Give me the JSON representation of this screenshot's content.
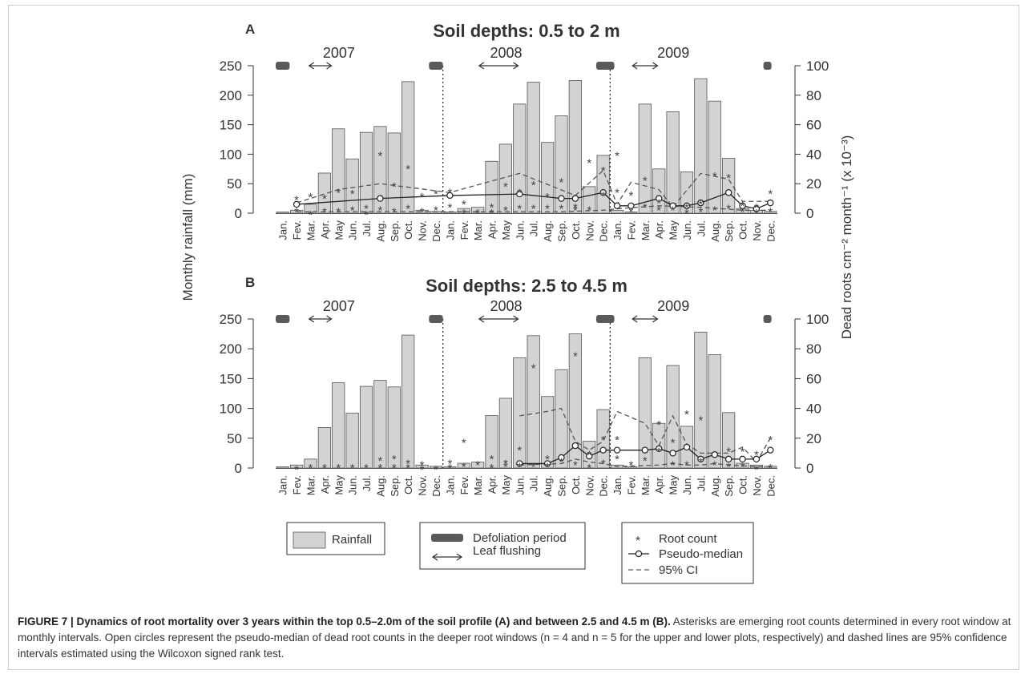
{
  "figure": {
    "caption_lead": "FIGURE 7 | Dynamics of root mortality over 3 years within the top 0.5–2.0m of the soil profile (A) and between 2.5 and 4.5 m (B).",
    "caption_rest": " Asterisks are emerging root counts determined in every root window at monthly intervals. Open circles represent the pseudo-median of dead root counts in the deeper root windows (n = 4 and n = 5 for the upper and lower plots, respectively) and dashed lines are 95% confidence intervals estimated using the Wilcoxon signed rank test."
  },
  "colors": {
    "bar_fill": "#d3d3d3",
    "bar_stroke": "#555555",
    "defoliation": "#5a5a5a",
    "line": "#222222",
    "asterisk": "#444444"
  },
  "legend": {
    "rainfall": "Rainfall",
    "defoliation": "Defoliation period",
    "leaf_flushing": "Leaf flushing",
    "root_count": "Root count",
    "pseudo_median": "Pseudo-median",
    "ci": "95% CI",
    "asterisk_symbol": "*"
  },
  "chart_data": [
    {
      "panel": "A",
      "title": "Soil depths: 0.5 to 2 m",
      "type": "bar",
      "ylabel": "Monthly rainfall (mm)",
      "y2label": "Dead roots cm⁻² month⁻¹ (x 10⁻³)",
      "ylim": [
        0,
        250
      ],
      "y2lim": [
        0,
        100
      ],
      "yticks": [
        "0",
        "50",
        "100",
        "150",
        "200",
        "250"
      ],
      "y2ticks": [
        "0",
        "20",
        "40",
        "60",
        "80",
        "100"
      ],
      "years": [
        "2007",
        "2008",
        "2009"
      ],
      "categories": [
        "Jan.",
        "Fev.",
        "Mar.",
        "Apr.",
        "May",
        "Jun.",
        "Jul.",
        "Aug.",
        "Sep.",
        "Oct.",
        "Nov.",
        "Dec.",
        "Jan.",
        "Fev.",
        "Mar.",
        "Apr.",
        "May",
        "Jun.",
        "Jul.",
        "Aug.",
        "Sep.",
        "Oct.",
        "Nov.",
        "Dec.",
        "Jan.",
        "Fev.",
        "Mar.",
        "Apr.",
        "May",
        "Jun.",
        "Jul.",
        "Aug.",
        "Sep.",
        "Oct.",
        "Nov.",
        "Dec."
      ],
      "rainfall": [
        2,
        5,
        15,
        68,
        143,
        92,
        137,
        147,
        136,
        223,
        5,
        3,
        2,
        8,
        10,
        88,
        117,
        185,
        222,
        120,
        165,
        225,
        45,
        98,
        5,
        2,
        185,
        75,
        172,
        70,
        228,
        190,
        93,
        8,
        5,
        3
      ],
      "pseudo_median": [
        [
          1,
          6
        ],
        [
          7,
          10
        ],
        [
          12,
          12
        ],
        [
          17,
          13
        ],
        [
          20,
          10
        ],
        [
          21,
          10
        ],
        [
          23,
          14
        ],
        [
          24,
          5
        ],
        [
          25,
          5
        ],
        [
          27,
          10
        ],
        [
          28,
          5
        ],
        [
          29,
          5
        ],
        [
          30,
          7
        ],
        [
          32,
          14
        ],
        [
          33,
          5
        ],
        [
          34,
          3
        ],
        [
          35,
          7
        ]
      ],
      "ci_upper": [
        [
          1,
          7
        ],
        [
          4,
          16
        ],
        [
          7,
          20
        ],
        [
          12,
          14
        ],
        [
          17,
          27
        ],
        [
          21,
          12
        ],
        [
          23,
          29
        ],
        [
          24,
          6
        ],
        [
          25,
          21
        ],
        [
          27,
          16
        ],
        [
          28,
          4
        ],
        [
          30,
          27
        ],
        [
          32,
          23
        ],
        [
          33,
          8
        ],
        [
          35,
          8
        ]
      ],
      "ci_lower": [
        [
          1,
          1
        ],
        [
          12,
          1
        ],
        [
          20,
          1
        ],
        [
          23,
          2
        ],
        [
          24,
          3
        ],
        [
          27,
          5
        ],
        [
          30,
          4
        ],
        [
          33,
          2
        ],
        [
          35,
          2
        ]
      ],
      "root_counts": [
        [
          1,
          10
        ],
        [
          1,
          2
        ],
        [
          2,
          12
        ],
        [
          2,
          0
        ],
        [
          3,
          11
        ],
        [
          3,
          2
        ],
        [
          4,
          15
        ],
        [
          4,
          2
        ],
        [
          5,
          14
        ],
        [
          5,
          3
        ],
        [
          6,
          4
        ],
        [
          6,
          0
        ],
        [
          7,
          40
        ],
        [
          7,
          3
        ],
        [
          8,
          19
        ],
        [
          8,
          2
        ],
        [
          9,
          31
        ],
        [
          9,
          4
        ],
        [
          10,
          12
        ],
        [
          10,
          2
        ],
        [
          11,
          14
        ],
        [
          11,
          3
        ],
        [
          12,
          15
        ],
        [
          12,
          5
        ],
        [
          13,
          7
        ],
        [
          13,
          1
        ],
        [
          14,
          1
        ],
        [
          15,
          5
        ],
        [
          15,
          1
        ],
        [
          16,
          19
        ],
        [
          16,
          3
        ],
        [
          17,
          15
        ],
        [
          17,
          4
        ],
        [
          18,
          20
        ],
        [
          18,
          4
        ],
        [
          19,
          12
        ],
        [
          19,
          4
        ],
        [
          20,
          22
        ],
        [
          20,
          4
        ],
        [
          21,
          5
        ],
        [
          21,
          3
        ],
        [
          22,
          35
        ],
        [
          22,
          3
        ],
        [
          23,
          30
        ],
        [
          23,
          13
        ],
        [
          24,
          40
        ],
        [
          24,
          15
        ],
        [
          25,
          13
        ],
        [
          25,
          2
        ],
        [
          26,
          23
        ],
        [
          26,
          5
        ],
        [
          27,
          8
        ],
        [
          27,
          3
        ],
        [
          28,
          3
        ],
        [
          29,
          5
        ],
        [
          29,
          1
        ],
        [
          30,
          7
        ],
        [
          30,
          2
        ],
        [
          31,
          26
        ],
        [
          31,
          3
        ],
        [
          32,
          25
        ],
        [
          32,
          4
        ],
        [
          33,
          6
        ],
        [
          33,
          2
        ],
        [
          34,
          5
        ],
        [
          34,
          1
        ],
        [
          35,
          14
        ],
        [
          35,
          2
        ]
      ],
      "defoliation_months": [
        [
          0,
          1
        ],
        [
          11,
          12
        ],
        [
          23,
          24.3
        ],
        [
          35,
          35.5
        ]
      ],
      "leaf_flushing_months": [
        [
          2.4,
          4
        ],
        [
          14.6,
          17.4
        ],
        [
          25.6,
          27.4
        ]
      ],
      "dotted_lines_at": [
        11.5,
        23.5
      ]
    },
    {
      "panel": "B",
      "title": "Soil depths: 2.5 to 4.5 m",
      "type": "bar",
      "ylabel": "Monthly rainfall (mm)",
      "y2label": "Dead roots cm⁻² month⁻¹ (x 10⁻³)",
      "ylim": [
        0,
        250
      ],
      "y2lim": [
        0,
        100
      ],
      "yticks": [
        "0",
        "50",
        "100",
        "150",
        "200",
        "250"
      ],
      "y2ticks": [
        "0",
        "20",
        "40",
        "60",
        "80",
        "100"
      ],
      "years": [
        "2007",
        "2008",
        "2009"
      ],
      "categories": [
        "Jan.",
        "Fev.",
        "Mar.",
        "Apr.",
        "May",
        "Jun.",
        "Jul.",
        "Aug.",
        "Sep.",
        "Oct.",
        "Nov.",
        "Dec.",
        "Jan.",
        "Fev.",
        "Mar.",
        "Apr.",
        "May",
        "Jun.",
        "Jul.",
        "Aug.",
        "Sep.",
        "Oct.",
        "Nov.",
        "Dec.",
        "Jan.",
        "Fev.",
        "Mar.",
        "Apr.",
        "May",
        "Jun.",
        "Jul.",
        "Aug.",
        "Sep.",
        "Oct.",
        "Nov.",
        "Dec."
      ],
      "rainfall": [
        2,
        5,
        15,
        68,
        143,
        92,
        137,
        147,
        136,
        223,
        5,
        3,
        2,
        8,
        10,
        88,
        117,
        185,
        222,
        120,
        165,
        225,
        45,
        98,
        5,
        2,
        185,
        75,
        172,
        70,
        228,
        190,
        93,
        8,
        5,
        3
      ],
      "pseudo_median": [
        [
          17,
          3
        ],
        [
          19,
          3
        ],
        [
          20,
          7
        ],
        [
          21,
          15
        ],
        [
          22,
          8
        ],
        [
          23,
          12
        ],
        [
          24,
          12
        ],
        [
          26,
          12
        ],
        [
          27,
          13
        ],
        [
          28,
          10
        ],
        [
          29,
          14
        ],
        [
          30,
          6
        ],
        [
          31,
          9
        ],
        [
          32,
          6
        ],
        [
          33,
          6
        ],
        [
          34,
          6
        ],
        [
          35,
          12
        ]
      ],
      "ci_upper": [
        [
          17,
          35
        ],
        [
          19,
          38
        ],
        [
          20,
          40
        ],
        [
          21,
          18
        ],
        [
          22,
          12
        ],
        [
          23,
          18
        ],
        [
          24,
          38
        ],
        [
          26,
          30
        ],
        [
          27,
          15
        ],
        [
          28,
          35
        ],
        [
          29,
          16
        ],
        [
          30,
          10
        ],
        [
          32,
          10
        ],
        [
          33,
          14
        ],
        [
          34,
          4
        ],
        [
          35,
          20
        ]
      ],
      "ci_lower": [
        [
          17,
          2
        ],
        [
          20,
          3
        ],
        [
          21,
          6
        ],
        [
          22,
          4
        ],
        [
          23,
          3
        ],
        [
          24,
          1
        ],
        [
          27,
          2
        ],
        [
          28,
          3
        ],
        [
          29,
          2
        ],
        [
          30,
          2
        ],
        [
          31,
          3
        ],
        [
          32,
          2
        ],
        [
          34,
          1
        ],
        [
          35,
          1
        ]
      ],
      "root_counts": [
        [
          1,
          0
        ],
        [
          2,
          1
        ],
        [
          3,
          1
        ],
        [
          4,
          1
        ],
        [
          5,
          1
        ],
        [
          6,
          1
        ],
        [
          7,
          6
        ],
        [
          7,
          1
        ],
        [
          8,
          7
        ],
        [
          8,
          1
        ],
        [
          9,
          4
        ],
        [
          9,
          1
        ],
        [
          10,
          3
        ],
        [
          10,
          0
        ],
        [
          11,
          0
        ],
        [
          12,
          4
        ],
        [
          12,
          1
        ],
        [
          13,
          18
        ],
        [
          13,
          2
        ],
        [
          14,
          3
        ],
        [
          15,
          7
        ],
        [
          15,
          1
        ],
        [
          16,
          4
        ],
        [
          16,
          2
        ],
        [
          17,
          13
        ],
        [
          17,
          2
        ],
        [
          18,
          68
        ],
        [
          18,
          2
        ],
        [
          19,
          7
        ],
        [
          19,
          2
        ],
        [
          20,
          5
        ],
        [
          21,
          76
        ],
        [
          21,
          3
        ],
        [
          22,
          10
        ],
        [
          22,
          1
        ],
        [
          23,
          20
        ],
        [
          23,
          4
        ],
        [
          24,
          20
        ],
        [
          24,
          7
        ],
        [
          25,
          3
        ],
        [
          26,
          6
        ],
        [
          27,
          30
        ],
        [
          27,
          12
        ],
        [
          28,
          18
        ],
        [
          28,
          3
        ],
        [
          29,
          37
        ],
        [
          29,
          3
        ],
        [
          30,
          33
        ],
        [
          30,
          5
        ],
        [
          31,
          3
        ],
        [
          32,
          12
        ],
        [
          32,
          2
        ],
        [
          33,
          12
        ],
        [
          33,
          2
        ],
        [
          34,
          10
        ],
        [
          34,
          0
        ],
        [
          35,
          20
        ],
        [
          35,
          1
        ]
      ],
      "defoliation_months": [
        [
          0,
          1
        ],
        [
          11,
          12
        ],
        [
          23,
          24.3
        ],
        [
          35,
          35.5
        ]
      ],
      "leaf_flushing_months": [
        [
          2.4,
          4
        ],
        [
          14.6,
          17.4
        ],
        [
          25.6,
          27.4
        ]
      ],
      "dotted_lines_at": [
        11.5,
        23.5
      ]
    }
  ]
}
